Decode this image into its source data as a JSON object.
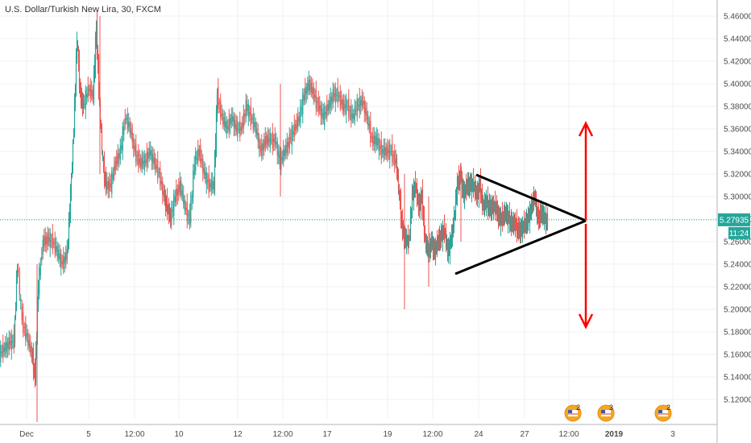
{
  "chart_data": {
    "type": "candlestick",
    "title": "U.S. Dollar/Turkish New Lira, 30, FXCM",
    "y_ticks": [
      "5.46000",
      "5.44000",
      "5.42000",
      "5.40000",
      "5.38000",
      "5.36000",
      "5.34000",
      "5.32000",
      "5.30000",
      "5.28000",
      "5.26000",
      "5.24000",
      "5.22000",
      "5.20000",
      "5.18000",
      "5.16000",
      "5.14000",
      "5.12000"
    ],
    "ylim": [
      5.12,
      5.46
    ],
    "x_ticks": [
      {
        "label": "Dec",
        "bold": false
      },
      {
        "label": "5",
        "bold": false
      },
      {
        "label": "12:00",
        "bold": false
      },
      {
        "label": "10",
        "bold": false
      },
      {
        "label": "12",
        "bold": false
      },
      {
        "label": "12:00",
        "bold": false
      },
      {
        "label": "17",
        "bold": false
      },
      {
        "label": "19",
        "bold": false
      },
      {
        "label": "12:00",
        "bold": false
      },
      {
        "label": "24",
        "bold": false
      },
      {
        "label": "27",
        "bold": false
      },
      {
        "label": "12:00",
        "bold": false
      },
      {
        "label": "2019",
        "bold": true
      },
      {
        "label": "3",
        "bold": false
      }
    ],
    "price_line_value": 5.27935,
    "price_label": "5.27935",
    "countdown_label": "11:24",
    "series_path": [
      [
        0,
        5.16
      ],
      [
        6,
        5.165
      ],
      [
        12,
        5.17
      ],
      [
        18,
        5.172
      ],
      [
        22,
        5.24
      ],
      [
        28,
        5.19
      ],
      [
        34,
        5.175
      ],
      [
        40,
        5.16
      ],
      [
        44,
        5.14
      ],
      [
        48,
        5.22
      ],
      [
        54,
        5.26
      ],
      [
        60,
        5.262
      ],
      [
        66,
        5.26
      ],
      [
        72,
        5.25
      ],
      [
        78,
        5.24
      ],
      [
        84,
        5.25
      ],
      [
        88,
        5.3
      ],
      [
        92,
        5.36
      ],
      [
        96,
        5.44
      ],
      [
        100,
        5.39
      ],
      [
        104,
        5.38
      ],
      [
        110,
        5.395
      ],
      [
        116,
        5.39
      ],
      [
        120,
        5.45
      ],
      [
        124,
        5.38
      ],
      [
        128,
        5.33
      ],
      [
        132,
        5.31
      ],
      [
        138,
        5.31
      ],
      [
        144,
        5.33
      ],
      [
        150,
        5.34
      ],
      [
        156,
        5.37
      ],
      [
        162,
        5.36
      ],
      [
        168,
        5.34
      ],
      [
        174,
        5.33
      ],
      [
        180,
        5.33
      ],
      [
        186,
        5.34
      ],
      [
        192,
        5.33
      ],
      [
        198,
        5.32
      ],
      [
        204,
        5.3
      ],
      [
        208,
        5.29
      ],
      [
        212,
        5.28
      ],
      [
        218,
        5.3
      ],
      [
        224,
        5.31
      ],
      [
        230,
        5.29
      ],
      [
        236,
        5.28
      ],
      [
        242,
        5.33
      ],
      [
        248,
        5.34
      ],
      [
        254,
        5.32
      ],
      [
        260,
        5.31
      ],
      [
        266,
        5.31
      ],
      [
        270,
        5.39
      ],
      [
        276,
        5.37
      ],
      [
        282,
        5.36
      ],
      [
        288,
        5.37
      ],
      [
        294,
        5.36
      ],
      [
        300,
        5.36
      ],
      [
        306,
        5.38
      ],
      [
        312,
        5.37
      ],
      [
        318,
        5.36
      ],
      [
        324,
        5.34
      ],
      [
        330,
        5.35
      ],
      [
        336,
        5.35
      ],
      [
        342,
        5.35
      ],
      [
        348,
        5.33
      ],
      [
        354,
        5.34
      ],
      [
        360,
        5.35
      ],
      [
        366,
        5.36
      ],
      [
        372,
        5.37
      ],
      [
        378,
        5.39
      ],
      [
        384,
        5.4
      ],
      [
        390,
        5.39
      ],
      [
        396,
        5.38
      ],
      [
        402,
        5.37
      ],
      [
        408,
        5.38
      ],
      [
        414,
        5.39
      ],
      [
        420,
        5.39
      ],
      [
        426,
        5.38
      ],
      [
        432,
        5.38
      ],
      [
        438,
        5.37
      ],
      [
        444,
        5.38
      ],
      [
        450,
        5.385
      ],
      [
        456,
        5.37
      ],
      [
        462,
        5.35
      ],
      [
        468,
        5.35
      ],
      [
        474,
        5.34
      ],
      [
        480,
        5.34
      ],
      [
        486,
        5.34
      ],
      [
        492,
        5.33
      ],
      [
        496,
        5.3
      ],
      [
        500,
        5.27
      ],
      [
        504,
        5.26
      ],
      [
        508,
        5.26
      ],
      [
        512,
        5.3
      ],
      [
        516,
        5.31
      ],
      [
        520,
        5.29
      ],
      [
        524,
        5.3
      ],
      [
        528,
        5.26
      ],
      [
        532,
        5.25
      ],
      [
        536,
        5.26
      ],
      [
        540,
        5.25
      ],
      [
        544,
        5.26
      ],
      [
        548,
        5.265
      ],
      [
        552,
        5.27
      ],
      [
        556,
        5.25
      ],
      [
        560,
        5.26
      ],
      [
        564,
        5.28
      ],
      [
        568,
        5.31
      ],
      [
        572,
        5.32
      ],
      [
        576,
        5.3
      ],
      [
        580,
        5.31
      ],
      [
        584,
        5.31
      ],
      [
        588,
        5.31
      ],
      [
        592,
        5.3
      ],
      [
        596,
        5.31
      ],
      [
        600,
        5.29
      ],
      [
        604,
        5.295
      ],
      [
        608,
        5.29
      ],
      [
        612,
        5.29
      ],
      [
        616,
        5.29
      ],
      [
        620,
        5.28
      ],
      [
        624,
        5.28
      ],
      [
        628,
        5.285
      ],
      [
        632,
        5.28
      ],
      [
        636,
        5.275
      ],
      [
        640,
        5.275
      ],
      [
        644,
        5.27
      ],
      [
        648,
        5.27
      ],
      [
        652,
        5.275
      ],
      [
        656,
        5.28
      ],
      [
        660,
        5.29
      ],
      [
        664,
        5.3
      ],
      [
        668,
        5.28
      ],
      [
        672,
        5.285
      ],
      [
        676,
        5.28
      ],
      [
        680,
        5.279
      ]
    ],
    "spikes": [
      [
        46,
        5.1,
        5.24
      ],
      [
        124,
        5.32,
        5.46
      ],
      [
        348,
        5.3,
        5.4
      ],
      [
        502,
        5.2,
        5.32
      ],
      [
        532,
        5.22,
        5.3
      ],
      [
        572,
        5.26,
        5.33
      ]
    ],
    "drawings": {
      "triangle_color": "#000000",
      "arrow_color": "#ff0000"
    },
    "event_badges": [
      {
        "count": "2"
      },
      {
        "count": "3"
      },
      {
        "count": "2"
      }
    ],
    "colors": {
      "up": "#26a69a",
      "down": "#ef5350",
      "price_line": "#26a69a",
      "grid": "#eef0f3"
    }
  }
}
